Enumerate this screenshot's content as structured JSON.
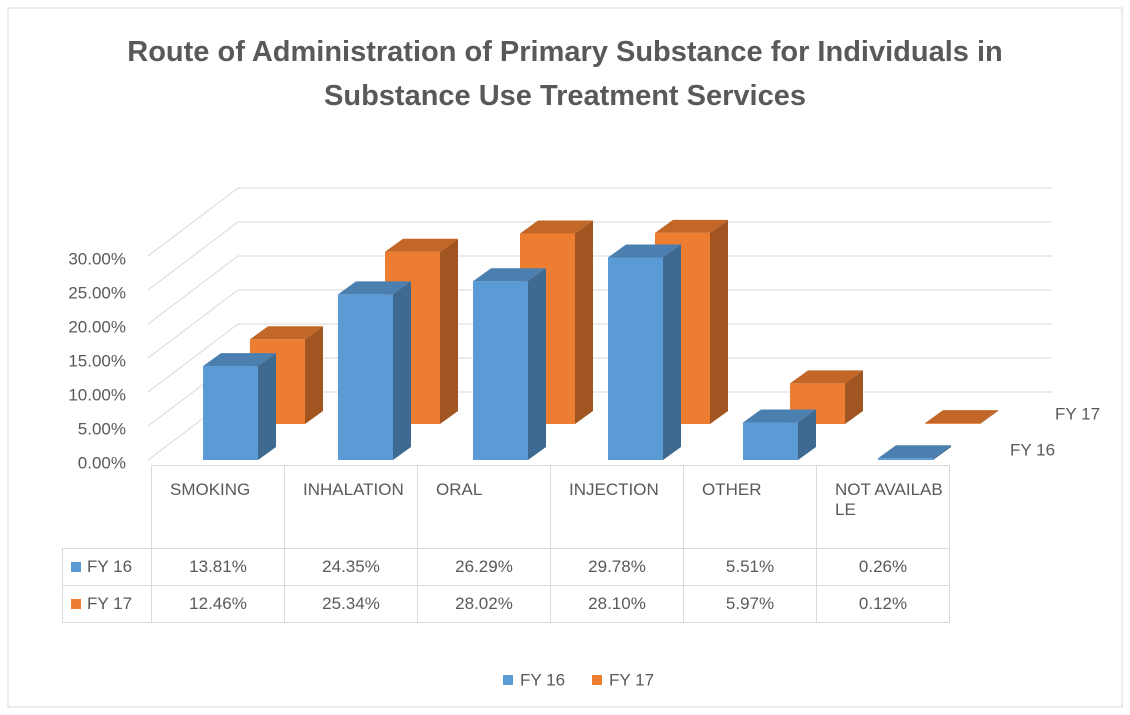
{
  "chart_data": {
    "type": "bar3d",
    "title": "Route of Administration of Primary Substance for Individuals in Substance Use Treatment Services",
    "categories": [
      "SMOKING",
      "INHALATION",
      "ORAL",
      "INJECTION",
      "OTHER",
      "NOT AVAILABLE"
    ],
    "series": [
      {
        "name": "FY 16",
        "color": "#5b9bd5",
        "values": [
          13.81,
          24.35,
          26.29,
          29.78,
          5.51,
          0.26
        ],
        "value_labels": [
          "13.81%",
          "24.35%",
          "26.29%",
          "29.78%",
          "5.51%",
          "0.26%"
        ]
      },
      {
        "name": "FY 17",
        "color": "#ed7d31",
        "values": [
          12.46,
          25.34,
          28.02,
          28.1,
          5.97,
          0.12
        ],
        "value_labels": [
          "12.46%",
          "25.34%",
          "28.02%",
          "28.10%",
          "5.97%",
          "0.12%"
        ]
      }
    ],
    "ylim": [
      0,
      30
    ],
    "yticks": [
      {
        "value": 0,
        "label": "0.00%"
      },
      {
        "value": 5,
        "label": "5.00%"
      },
      {
        "value": 10,
        "label": "10.00%"
      },
      {
        "value": 15,
        "label": "15.00%"
      },
      {
        "value": 20,
        "label": "20.00%"
      },
      {
        "value": 25,
        "label": "25.00%"
      },
      {
        "value": 30,
        "label": "30.00%"
      }
    ],
    "grid": true,
    "legend": "bottom"
  }
}
